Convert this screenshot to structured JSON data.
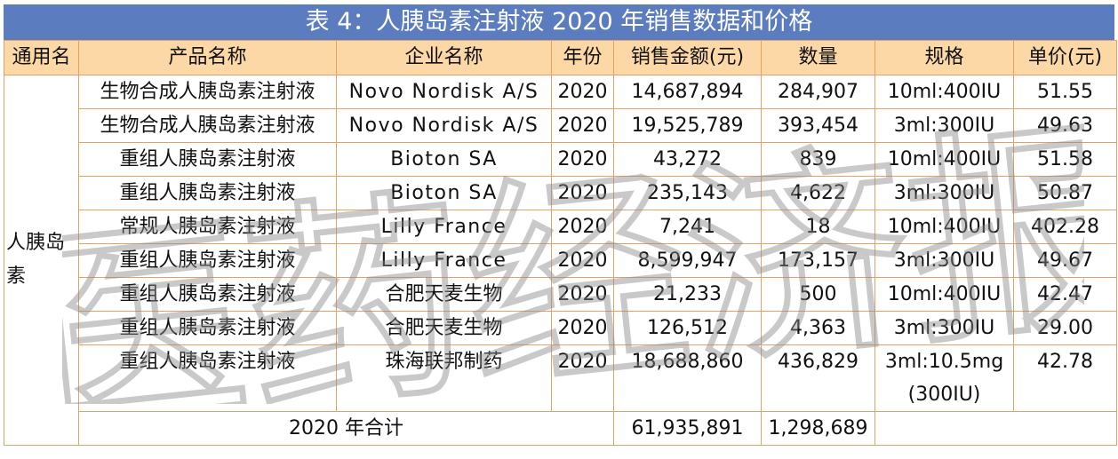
{
  "title": "表 4：人胰岛素注射液 2020 年销售数据和价格",
  "headers": {
    "generic": "通用名",
    "product": "产品名称",
    "company": "企业名称",
    "year": "年份",
    "amount": "销售金额(元)",
    "quantity": "数量",
    "spec": "规格",
    "unit_price": "单价(元)"
  },
  "category": "人胰岛素",
  "rows": [
    {
      "product": "生物合成人胰岛素注射液",
      "company": "Novo Nordisk A/S",
      "year": "2020",
      "amount": "14,687,894",
      "quantity": "284,907",
      "spec": "10ml:400IU",
      "unit_price": "51.55"
    },
    {
      "product": "生物合成人胰岛素注射液",
      "company": "Novo Nordisk A/S",
      "year": "2020",
      "amount": "19,525,789",
      "quantity": "393,454",
      "spec": "3ml:300IU",
      "unit_price": "49.63"
    },
    {
      "product": "重组人胰岛素注射液",
      "company": "Bioton SA",
      "year": "2020",
      "amount": "43,272",
      "quantity": "839",
      "spec": "10ml:400IU",
      "unit_price": "51.58"
    },
    {
      "product": "重组人胰岛素注射液",
      "company": "Bioton SA",
      "year": "2020",
      "amount": "235,143",
      "quantity": "4,622",
      "spec": "3ml:300IU",
      "unit_price": "50.87"
    },
    {
      "product": "常规人胰岛素注射液",
      "company": "Lilly France",
      "year": "2020",
      "amount": "7,241",
      "quantity": "18",
      "spec": "10ml:400IU",
      "unit_price": "402.28"
    },
    {
      "product": "重组人胰岛素注射液",
      "company": "Lilly France",
      "year": "2020",
      "amount": "8,599,947",
      "quantity": "173,157",
      "spec": "3ml:300IU",
      "unit_price": "49.67"
    },
    {
      "product": "重组人胰岛素注射液",
      "company": "合肥天麦生物",
      "year": "2020",
      "amount": "21,233",
      "quantity": "500",
      "spec": "10ml:400IU",
      "unit_price": "42.47"
    },
    {
      "product": "重组人胰岛素注射液",
      "company": "合肥天麦生物",
      "year": "2020",
      "amount": "126,512",
      "quantity": "4,363",
      "spec": "3ml:300IU",
      "unit_price": "29.00"
    },
    {
      "product": "重组人胰岛素注射液",
      "company": "珠海联邦制药",
      "year": "2020",
      "amount": "18,688,860",
      "quantity": "436,829",
      "spec": "3ml:10.5mg (300IU)",
      "unit_price": "42.78"
    }
  ],
  "total": {
    "label": "2020 年合计",
    "amount": "61,935,891",
    "quantity": "1,298,689"
  },
  "watermark": "医药经济报",
  "colors": {
    "title_bg": "#5b7cbf",
    "header_bg": "#fbd8a6",
    "border": "#e0a266"
  }
}
